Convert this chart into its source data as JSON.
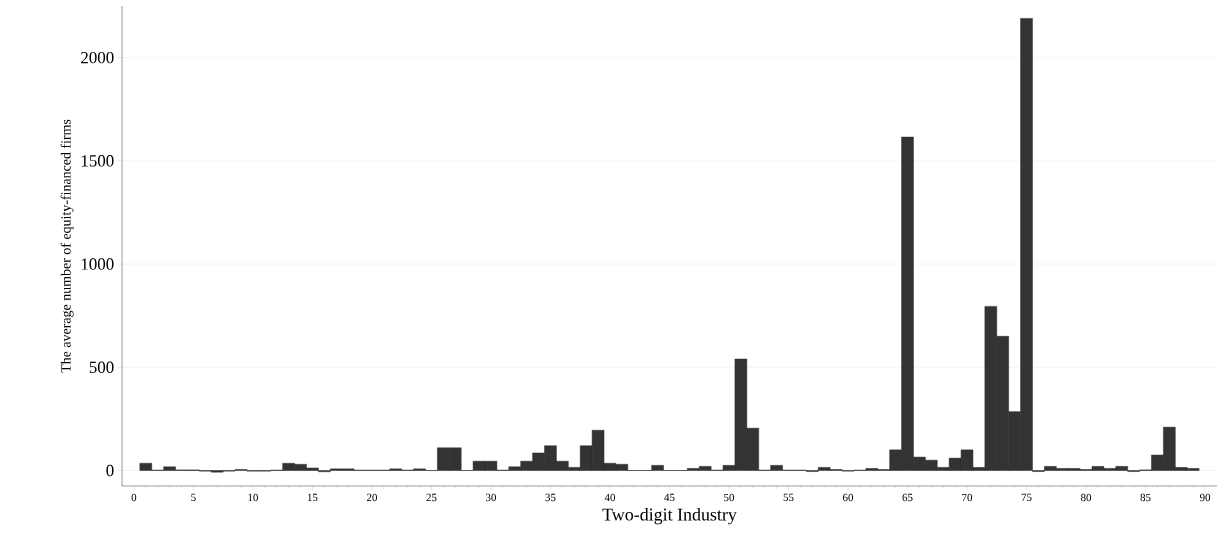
{
  "chart_data": {
    "type": "bar",
    "xlabel": "Two-digit Industry",
    "ylabel": "The average number of equity-financed firms",
    "x": [
      1,
      2,
      3,
      4,
      5,
      6,
      7,
      8,
      9,
      10,
      11,
      12,
      13,
      14,
      15,
      16,
      17,
      18,
      19,
      20,
      21,
      22,
      23,
      24,
      25,
      26,
      27,
      28,
      29,
      30,
      31,
      32,
      33,
      34,
      35,
      36,
      37,
      38,
      39,
      40,
      41,
      42,
      43,
      44,
      45,
      46,
      47,
      48,
      49,
      50,
      51,
      52,
      53,
      54,
      55,
      56,
      57,
      58,
      59,
      60,
      61,
      62,
      63,
      64,
      65,
      66,
      67,
      68,
      69,
      70,
      71,
      72,
      73,
      74,
      75,
      76,
      77,
      78,
      79,
      80,
      81,
      82,
      83,
      84,
      85,
      86,
      87,
      88,
      89
    ],
    "values": [
      35,
      2,
      18,
      3,
      3,
      -3,
      -8,
      -3,
      5,
      -3,
      -3,
      2,
      35,
      30,
      12,
      -6,
      8,
      8,
      2,
      2,
      2,
      8,
      2,
      8,
      0,
      110,
      110,
      0,
      45,
      45,
      2,
      18,
      45,
      85,
      120,
      45,
      15,
      120,
      195,
      35,
      30,
      0,
      0,
      25,
      0,
      0,
      10,
      20,
      2,
      25,
      540,
      205,
      2,
      25,
      2,
      2,
      -5,
      15,
      5,
      -3,
      2,
      10,
      5,
      100,
      1615,
      65,
      50,
      15,
      60,
      100,
      15,
      795,
      650,
      285,
      2190,
      -5,
      20,
      10,
      10,
      5,
      20,
      10,
      20,
      -5,
      3,
      75,
      210,
      15,
      10
    ],
    "color": "#333333",
    "xlim": [
      -1,
      91
    ],
    "ylim": [
      -75,
      2250
    ],
    "xticks": [
      0,
      5,
      10,
      15,
      20,
      25,
      30,
      35,
      40,
      45,
      50,
      55,
      60,
      65,
      70,
      75,
      80,
      85,
      90
    ],
    "yticks": [
      0,
      500,
      1000,
      1500,
      2000
    ],
    "grid": "y"
  }
}
